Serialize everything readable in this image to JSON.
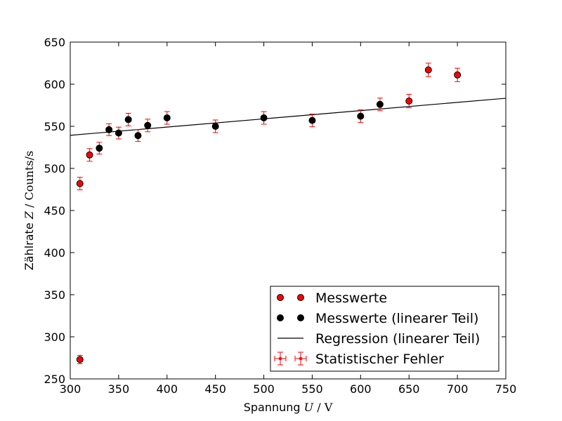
{
  "chart_data": {
    "type": "scatter",
    "xlabel": {
      "text": "Spannung",
      "math_var": "U",
      "sep": " / ",
      "unit": "V"
    },
    "ylabel": {
      "text": "Zählrate",
      "math_var": "Z",
      "sep": " / ",
      "unit": "Counts/s"
    },
    "xlim": [
      300,
      750
    ],
    "ylim": [
      250,
      650
    ],
    "xticks": [
      300,
      350,
      400,
      450,
      500,
      550,
      600,
      650,
      700,
      750
    ],
    "yticks": [
      250,
      300,
      350,
      400,
      450,
      500,
      550,
      600,
      650
    ],
    "grid": false,
    "legend_position": "lower-right",
    "colors": {
      "measured": "#ff0000",
      "linear": "#000000",
      "regression": "#000000",
      "errorbar": "#ff0000"
    },
    "series": [
      {
        "name": "Messwerte",
        "marker": "circle",
        "x": [
          310,
          320,
          650,
          670,
          700,
          310
        ],
        "y": [
          482,
          516,
          580,
          617,
          611,
          273
        ],
        "yerr": [
          7.5,
          7.5,
          8,
          8,
          8,
          5
        ]
      },
      {
        "name": "Messwerte (linearer Teil)",
        "marker": "circle",
        "x": [
          330,
          340,
          350,
          360,
          370,
          380,
          400,
          450,
          500,
          550,
          600,
          620
        ],
        "y": [
          524,
          546,
          542,
          558,
          539,
          551,
          560,
          550,
          560,
          557,
          562,
          576
        ],
        "yerr": [
          7,
          7,
          7,
          7.5,
          7,
          7.5,
          7.5,
          7.5,
          7.5,
          7.5,
          7.5,
          7.5
        ]
      },
      {
        "name": "Regression (linearer Teil)",
        "type": "line",
        "x": [
          300,
          750
        ],
        "y": [
          539.3,
          583.3
        ]
      },
      {
        "name": "Statistischer Fehler",
        "type": "errorbar"
      }
    ]
  }
}
